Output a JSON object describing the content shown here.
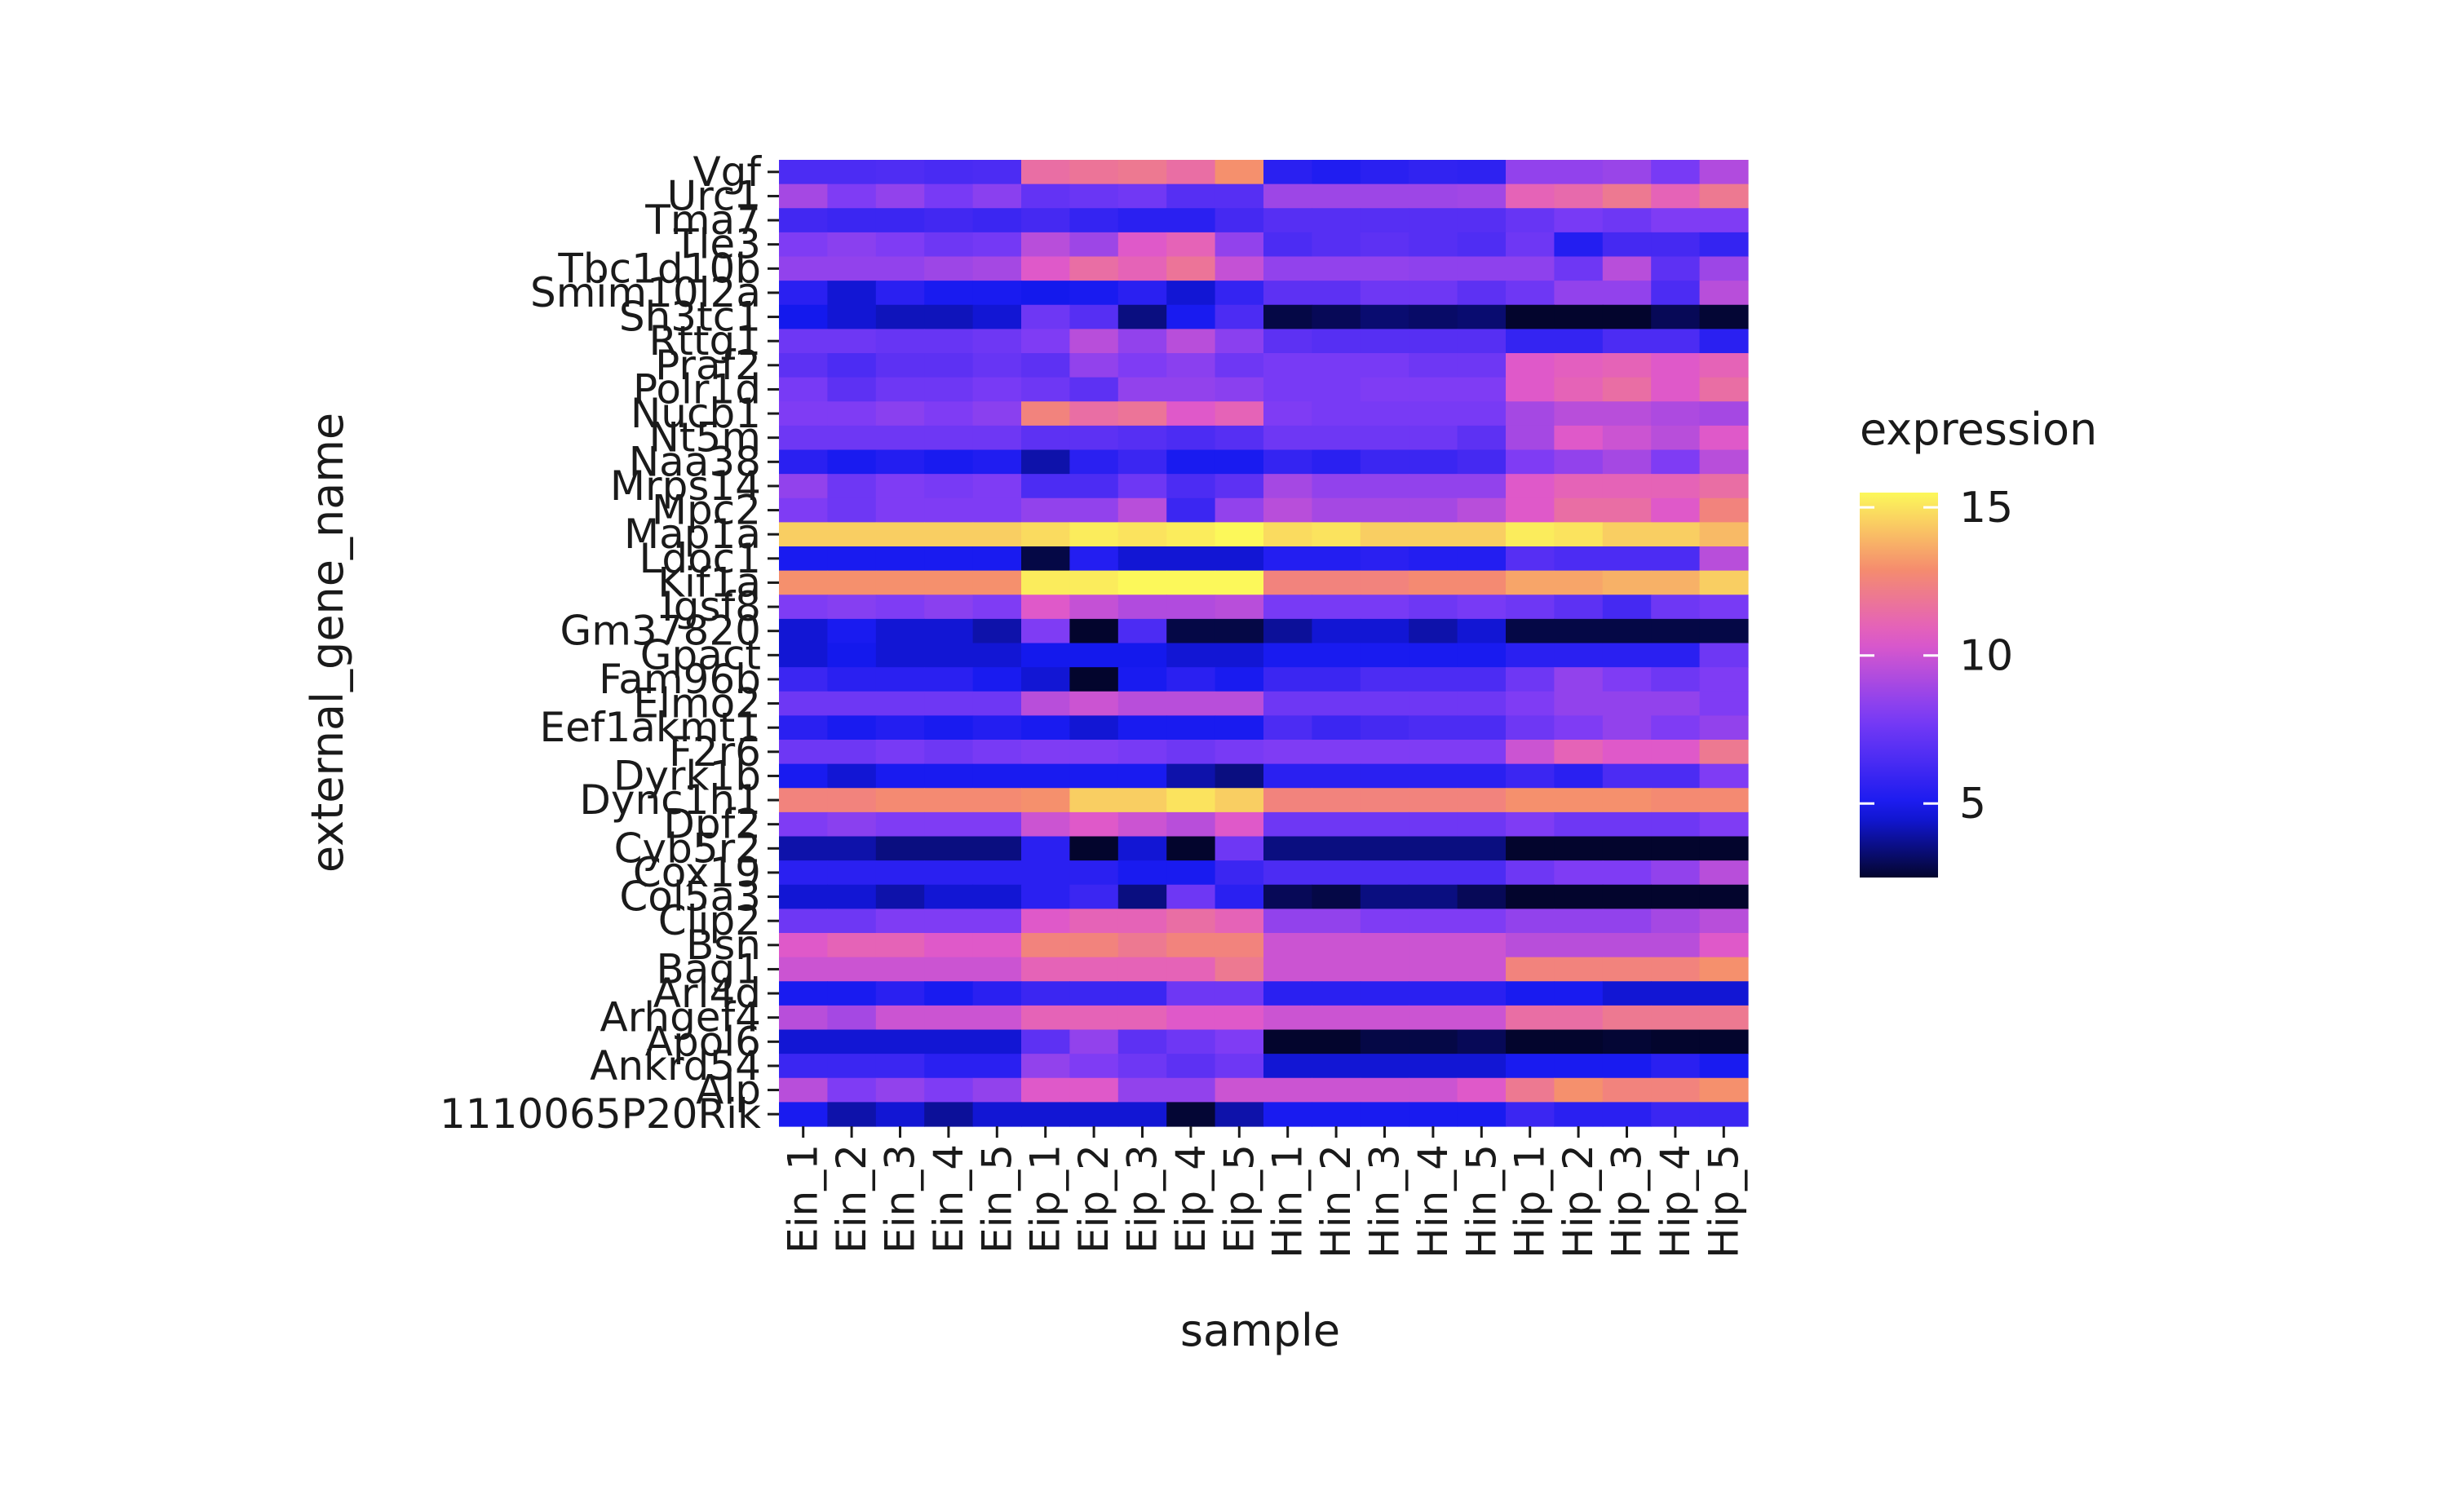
{
  "chart_data": {
    "type": "heatmap",
    "xlabel": "sample",
    "ylabel": "external_gene_name",
    "legend": {
      "title": "expression",
      "position": "right",
      "ticks": [
        5,
        10,
        15
      ],
      "range": [
        2.5,
        15.5
      ]
    },
    "x": [
      "Ein_1",
      "Ein_2",
      "Ein_3",
      "Ein_4",
      "Ein_5",
      "Eip_1",
      "Eip_2",
      "Eip_3",
      "Eip_4",
      "Eip_5",
      "Hin_1",
      "Hin_2",
      "Hin_3",
      "Hin_4",
      "Hin_5",
      "Hip_1",
      "Hip_2",
      "Hip_3",
      "Hip_4",
      "Hip_5"
    ],
    "y": [
      "Vgf",
      "Urc1",
      "Tma7",
      "Tle3",
      "Tbc1d10b",
      "Smim10l2a",
      "Sh3tc1",
      "Rttg1",
      "Praf2",
      "Polr1d",
      "Nucb1",
      "Nt5m",
      "Naa38",
      "Mrps14",
      "Mpc2",
      "Map1a",
      "Ldoc1",
      "Kif1a",
      "Igsf8",
      "Gm37820",
      "Gpact",
      "Fam96b",
      "Elmo2",
      "Eef1akmt1",
      "F2r6",
      "Dyrk1b",
      "Dync1h1",
      "Dpf2",
      "Cyb5r2",
      "Cox19",
      "Col5a3",
      "Clip2",
      "Bsn",
      "Bag1",
      "Arl4d",
      "Arhgef4",
      "Apol6",
      "Ankrd54",
      "Alp",
      "1110065P20Rik"
    ],
    "values": [
      [
        6.5,
        6.5,
        6.6,
        6.4,
        6.5,
        11.5,
        11.8,
        12.0,
        11.5,
        13.0,
        5.5,
        5.2,
        5.5,
        5.7,
        5.6,
        8.5,
        8.5,
        8.7,
        7.8,
        9.3
      ],
      [
        9.0,
        8.0,
        8.5,
        7.8,
        8.3,
        7.2,
        7.4,
        7.6,
        6.8,
        6.8,
        8.8,
        8.8,
        8.8,
        8.8,
        8.9,
        11.0,
        11.3,
        12.0,
        11.0,
        12.0
      ],
      [
        6.2,
        6.0,
        6.0,
        6.2,
        6.0,
        6.3,
        5.8,
        5.5,
        5.5,
        6.3,
        6.8,
        6.8,
        6.8,
        6.8,
        6.8,
        7.3,
        7.8,
        7.5,
        8.0,
        8.0
      ],
      [
        8.0,
        8.3,
        8.0,
        7.5,
        7.7,
        9.5,
        8.8,
        10.5,
        11.0,
        8.5,
        6.5,
        6.8,
        7.0,
        6.8,
        6.6,
        7.5,
        5.3,
        6.3,
        6.3,
        5.8
      ],
      [
        8.5,
        8.5,
        8.5,
        8.8,
        9.0,
        10.5,
        11.5,
        11.0,
        11.8,
        9.8,
        8.5,
        8.5,
        8.5,
        8.4,
        8.4,
        8.4,
        7.5,
        9.5,
        7.0,
        8.8
      ],
      [
        5.5,
        4.5,
        5.5,
        5.0,
        5.0,
        4.8,
        5.0,
        5.5,
        4.5,
        5.8,
        7.0,
        7.0,
        7.5,
        7.5,
        7.0,
        7.5,
        8.5,
        8.5,
        6.5,
        9.5
      ],
      [
        4.8,
        4.5,
        4.2,
        4.2,
        4.5,
        7.5,
        6.8,
        3.5,
        5.0,
        6.5,
        2.8,
        3.0,
        3.3,
        3.2,
        3.3,
        2.5,
        2.5,
        2.5,
        3.0,
        2.6
      ],
      [
        7.5,
        7.5,
        7.3,
        7.3,
        7.5,
        8.0,
        9.5,
        8.5,
        9.5,
        8.3,
        7.0,
        6.8,
        6.8,
        6.8,
        6.8,
        5.8,
        5.8,
        6.5,
        6.5,
        5.5
      ],
      [
        7.0,
        6.5,
        7.0,
        7.0,
        7.3,
        7.0,
        8.5,
        8.0,
        8.3,
        7.5,
        7.8,
        7.8,
        7.8,
        7.5,
        7.5,
        10.5,
        10.8,
        11.0,
        10.5,
        11.0
      ],
      [
        7.8,
        7.0,
        7.5,
        7.5,
        7.8,
        7.5,
        7.0,
        8.5,
        8.5,
        8.3,
        7.8,
        7.8,
        8.0,
        8.0,
        8.0,
        10.5,
        11.0,
        11.5,
        10.5,
        11.5
      ],
      [
        8.0,
        8.0,
        8.3,
        8.0,
        8.3,
        12.5,
        11.5,
        11.8,
        10.5,
        11.0,
        8.0,
        7.8,
        7.8,
        7.8,
        7.8,
        9.0,
        9.5,
        9.5,
        9.2,
        9.0
      ],
      [
        7.5,
        7.5,
        7.5,
        7.5,
        7.5,
        7.0,
        7.0,
        6.8,
        6.5,
        6.8,
        7.5,
        7.5,
        7.5,
        7.5,
        7.0,
        9.0,
        10.5,
        10.0,
        9.5,
        10.5
      ],
      [
        5.5,
        5.0,
        5.3,
        5.0,
        5.2,
        4.0,
        5.5,
        6.0,
        5.0,
        5.0,
        5.8,
        5.5,
        6.0,
        6.0,
        6.3,
        8.0,
        8.5,
        9.0,
        8.0,
        9.5
      ],
      [
        8.5,
        7.5,
        8.0,
        7.8,
        8.0,
        6.5,
        6.5,
        7.5,
        6.5,
        7.0,
        9.0,
        8.5,
        8.5,
        8.5,
        8.5,
        10.5,
        11.0,
        11.0,
        11.0,
        11.5
      ],
      [
        8.0,
        7.5,
        8.0,
        8.0,
        8.0,
        8.5,
        8.5,
        9.5,
        6.0,
        8.5,
        9.5,
        9.0,
        9.0,
        9.0,
        9.5,
        10.5,
        11.5,
        11.5,
        10.5,
        12.5
      ],
      [
        14.5,
        14.5,
        14.5,
        14.5,
        14.5,
        14.8,
        15.2,
        15.0,
        15.2,
        15.5,
        14.8,
        15.0,
        14.5,
        14.5,
        14.5,
        15.2,
        15.0,
        14.5,
        14.5,
        14.0
      ],
      [
        5.0,
        5.0,
        5.0,
        5.0,
        5.0,
        2.8,
        5.3,
        4.5,
        4.5,
        4.5,
        5.3,
        5.3,
        5.5,
        5.3,
        5.3,
        6.8,
        6.5,
        6.5,
        6.5,
        9.5
      ],
      [
        13.0,
        13.0,
        13.0,
        13.0,
        13.0,
        15.2,
        15.2,
        15.5,
        15.5,
        15.5,
        12.5,
        12.5,
        12.5,
        12.8,
        12.8,
        13.5,
        13.5,
        13.8,
        13.8,
        14.5
      ],
      [
        8.0,
        8.2,
        8.0,
        8.3,
        8.0,
        10.5,
        9.8,
        9.3,
        9.3,
        9.5,
        7.8,
        7.8,
        7.8,
        7.5,
        7.8,
        7.5,
        7.0,
        6.3,
        7.5,
        7.8
      ],
      [
        4.5,
        5.0,
        4.5,
        4.5,
        4.0,
        8.0,
        2.5,
        6.5,
        2.8,
        2.8,
        3.8,
        4.5,
        4.5,
        4.0,
        4.5,
        2.8,
        2.8,
        2.8,
        2.8,
        2.8
      ],
      [
        4.5,
        4.8,
        4.5,
        4.5,
        4.5,
        4.8,
        4.8,
        4.8,
        4.5,
        4.5,
        5.0,
        5.0,
        5.0,
        5.0,
        5.0,
        5.5,
        5.5,
        5.5,
        5.5,
        7.5
      ],
      [
        6.0,
        5.5,
        5.5,
        5.5,
        5.0,
        4.5,
        2.5,
        5.0,
        5.5,
        5.0,
        6.0,
        6.0,
        6.5,
        6.5,
        6.5,
        7.5,
        8.5,
        8.0,
        7.5,
        8.0
      ],
      [
        7.5,
        7.5,
        7.5,
        7.5,
        7.5,
        9.5,
        10.0,
        9.5,
        9.5,
        9.5,
        7.5,
        7.5,
        7.5,
        7.5,
        7.5,
        8.0,
        8.5,
        8.5,
        8.5,
        8.0
      ],
      [
        5.5,
        5.0,
        5.3,
        5.0,
        5.3,
        5.0,
        4.5,
        5.0,
        5.0,
        5.0,
        6.5,
        6.0,
        6.3,
        6.5,
        6.5,
        7.5,
        8.0,
        8.5,
        8.0,
        8.5
      ],
      [
        7.5,
        7.5,
        7.8,
        7.5,
        7.8,
        8.0,
        8.0,
        7.8,
        7.5,
        7.8,
        8.0,
        8.0,
        8.0,
        8.0,
        8.0,
        10.0,
        11.0,
        10.5,
        10.5,
        12.0
      ],
      [
        5.0,
        4.5,
        5.0,
        5.0,
        5.0,
        5.0,
        5.0,
        5.0,
        4.0,
        3.5,
        5.5,
        5.5,
        5.5,
        5.5,
        5.5,
        6.0,
        5.5,
        6.5,
        6.5,
        8.0
      ],
      [
        12.5,
        12.5,
        12.8,
        12.8,
        12.8,
        13.0,
        14.5,
        14.5,
        15.0,
        14.5,
        12.5,
        12.5,
        12.5,
        12.5,
        12.5,
        13.0,
        13.0,
        13.0,
        12.8,
        12.8
      ],
      [
        8.0,
        8.3,
        8.0,
        8.0,
        8.0,
        10.0,
        10.5,
        10.0,
        9.5,
        10.5,
        7.5,
        7.5,
        7.5,
        7.5,
        7.5,
        8.0,
        7.5,
        7.5,
        7.5,
        8.0
      ],
      [
        4.0,
        4.0,
        3.5,
        3.5,
        3.5,
        5.5,
        2.5,
        4.5,
        2.5,
        7.5,
        3.5,
        3.5,
        3.5,
        3.5,
        3.5,
        2.5,
        2.5,
        2.5,
        2.5,
        2.5
      ],
      [
        5.5,
        5.5,
        5.5,
        5.5,
        5.5,
        5.5,
        5.5,
        5.0,
        5.0,
        6.0,
        6.5,
        6.5,
        6.5,
        6.5,
        6.5,
        7.5,
        8.0,
        8.0,
        8.5,
        9.5
      ],
      [
        4.5,
        4.5,
        4.0,
        4.5,
        4.5,
        5.5,
        6.0,
        3.5,
        7.5,
        5.5,
        3.0,
        2.8,
        3.5,
        3.5,
        3.0,
        2.5,
        2.5,
        2.5,
        2.5,
        2.5
      ],
      [
        7.5,
        7.5,
        8.0,
        8.0,
        8.0,
        10.5,
        11.0,
        11.0,
        11.5,
        11.0,
        8.5,
        8.5,
        8.0,
        8.0,
        8.0,
        8.5,
        8.5,
        8.5,
        9.0,
        9.5
      ],
      [
        10.5,
        11.0,
        11.0,
        10.5,
        10.5,
        12.5,
        12.5,
        12.0,
        12.5,
        12.5,
        10.0,
        10.0,
        10.0,
        10.0,
        10.0,
        9.5,
        9.5,
        9.5,
        9.5,
        10.5
      ],
      [
        10.0,
        10.0,
        10.0,
        10.0,
        10.0,
        11.0,
        11.0,
        11.0,
        11.0,
        12.0,
        10.0,
        10.0,
        10.0,
        10.0,
        10.0,
        12.5,
        12.5,
        12.5,
        12.5,
        13.0
      ],
      [
        5.0,
        5.0,
        5.5,
        5.0,
        5.5,
        6.0,
        6.0,
        6.0,
        7.5,
        7.5,
        5.5,
        5.5,
        5.5,
        5.5,
        5.5,
        5.0,
        5.0,
        4.5,
        4.5,
        4.5
      ],
      [
        9.5,
        9.0,
        10.0,
        10.0,
        10.0,
        11.0,
        11.0,
        11.0,
        10.5,
        10.5,
        10.0,
        10.0,
        10.0,
        10.0,
        10.0,
        11.5,
        11.5,
        12.0,
        12.0,
        12.0
      ],
      [
        4.5,
        4.5,
        4.5,
        4.5,
        4.5,
        7.0,
        8.5,
        7.0,
        7.5,
        8.0,
        2.5,
        2.5,
        2.8,
        2.8,
        3.0,
        2.5,
        2.5,
        2.6,
        2.5,
        2.5
      ],
      [
        6.0,
        6.0,
        6.0,
        5.5,
        5.5,
        8.5,
        8.0,
        7.5,
        7.0,
        7.5,
        4.5,
        4.5,
        4.5,
        4.5,
        4.5,
        5.0,
        5.0,
        5.0,
        5.5,
        5.0
      ],
      [
        9.5,
        8.0,
        8.5,
        8.0,
        8.5,
        10.5,
        10.5,
        8.5,
        8.5,
        10.0,
        10.0,
        10.0,
        10.0,
        10.0,
        10.5,
        12.0,
        13.0,
        12.5,
        12.5,
        13.0
      ],
      [
        5.0,
        4.0,
        4.5,
        3.8,
        4.5,
        4.5,
        4.5,
        4.5,
        2.6,
        4.0,
        5.0,
        5.0,
        5.0,
        5.0,
        5.0,
        6.0,
        5.5,
        5.5,
        6.0,
        6.0
      ]
    ]
  }
}
